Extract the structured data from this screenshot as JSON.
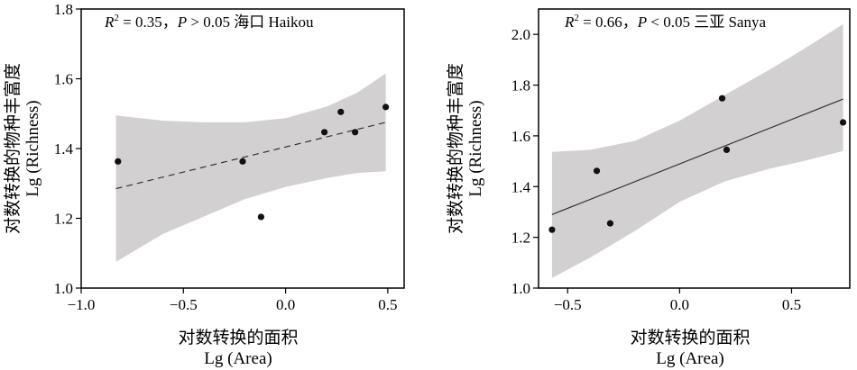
{
  "chart_data": [
    {
      "type": "scatter",
      "annotation": {
        "r_prefix": "R",
        "r_sup": "2",
        "r_value": " = 0.35，",
        "p_letter": "P",
        "p_value": " > 0.05 海口 Haikou"
      },
      "xlabel_cn": "对数转换的面积",
      "xlabel_en": "Lg (Area)",
      "ylabel_cn": "对数转换的物种丰富度",
      "ylabel_en": "Lg (Richness)",
      "xlim": [
        -1.0,
        0.58
      ],
      "ylim": [
        1.0,
        1.8
      ],
      "xticks": [
        -1.0,
        -0.5,
        0.0,
        0.5
      ],
      "xtick_labels": [
        "−1.0",
        "−0.5",
        "0.0",
        "0.5"
      ],
      "yticks": [
        1.0,
        1.2,
        1.4,
        1.6,
        1.8
      ],
      "ytick_labels": [
        "1.0",
        "1.2",
        "1.4",
        "1.6",
        "1.8"
      ],
      "points": [
        {
          "x": -0.82,
          "y": 1.363
        },
        {
          "x": -0.21,
          "y": 1.363
        },
        {
          "x": -0.12,
          "y": 1.204
        },
        {
          "x": 0.19,
          "y": 1.447
        },
        {
          "x": 0.27,
          "y": 1.505
        },
        {
          "x": 0.34,
          "y": 1.447
        },
        {
          "x": 0.49,
          "y": 1.519
        }
      ],
      "fit": {
        "x": [
          -0.83,
          0.49
        ],
        "y": [
          1.285,
          1.475
        ],
        "style": "dashed"
      },
      "band_x": [
        -0.83,
        -0.6,
        -0.4,
        -0.2,
        0.0,
        0.2,
        0.35,
        0.49
      ],
      "band_upper": [
        1.495,
        1.48,
        1.475,
        1.475,
        1.487,
        1.52,
        1.56,
        1.615
      ],
      "band_lower": [
        1.075,
        1.155,
        1.205,
        1.255,
        1.29,
        1.315,
        1.33,
        1.335
      ]
    },
    {
      "type": "scatter",
      "annotation": {
        "r_prefix": "R",
        "r_sup": "2",
        "r_value": " = 0.66，",
        "p_letter": "P",
        "p_value": " < 0.05 三亚 Sanya"
      },
      "xlabel_cn": "对数转换的面积",
      "xlabel_en": "Lg (Area)",
      "ylabel_cn": "对数转换的物种丰富度",
      "ylabel_en": "Lg (Richness)",
      "xlim": [
        -0.63,
        0.76
      ],
      "ylim": [
        1.0,
        2.1
      ],
      "xticks": [
        -0.5,
        0.0,
        0.5
      ],
      "xtick_labels": [
        "−0.5",
        "0.0",
        "0.5"
      ],
      "yticks": [
        1.0,
        1.2,
        1.4,
        1.6,
        1.8,
        2.0
      ],
      "ytick_labels": [
        "1.0",
        "1.2",
        "1.4",
        "1.6",
        "1.8",
        "2.0"
      ],
      "points": [
        {
          "x": -0.57,
          "y": 1.23
        },
        {
          "x": -0.37,
          "y": 1.462
        },
        {
          "x": -0.31,
          "y": 1.255
        },
        {
          "x": 0.19,
          "y": 1.748
        },
        {
          "x": 0.21,
          "y": 1.545
        },
        {
          "x": 0.73,
          "y": 1.653
        }
      ],
      "fit": {
        "x": [
          -0.57,
          0.73
        ],
        "y": [
          1.29,
          1.745
        ],
        "style": "solid"
      },
      "band_x": [
        -0.57,
        -0.4,
        -0.2,
        0.0,
        0.2,
        0.4,
        0.55,
        0.73
      ],
      "band_upper": [
        1.537,
        1.545,
        1.58,
        1.66,
        1.76,
        1.86,
        1.94,
        2.04
      ],
      "band_lower": [
        1.04,
        1.12,
        1.225,
        1.34,
        1.42,
        1.47,
        1.5,
        1.54
      ]
    }
  ],
  "colors": {
    "band": "#d3d0d1",
    "point": "#111111",
    "line": "#333333",
    "axis": "#000000"
  }
}
